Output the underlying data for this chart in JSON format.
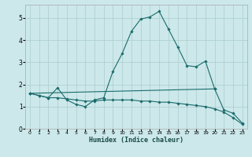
{
  "title": "",
  "xlabel": "Humidex (Indice chaleur)",
  "bg_color": "#cce8ea",
  "grid_color": "#aacccc",
  "line_color": "#1a6b6b",
  "xlim": [
    -0.5,
    23.5
  ],
  "ylim": [
    0,
    5.6
  ],
  "xticks": [
    0,
    1,
    2,
    3,
    4,
    5,
    6,
    7,
    8,
    9,
    10,
    11,
    12,
    13,
    14,
    15,
    16,
    17,
    18,
    19,
    20,
    21,
    22,
    23
  ],
  "yticks": [
    0,
    1,
    2,
    3,
    4,
    5
  ],
  "series": [
    {
      "x": [
        0,
        1,
        2,
        3,
        4,
        5,
        6,
        7,
        8,
        9,
        10,
        11,
        12,
        13,
        14,
        15,
        16,
        17,
        18,
        19,
        20
      ],
      "y": [
        1.6,
        1.5,
        1.4,
        1.85,
        1.3,
        1.1,
        1.0,
        1.3,
        1.4,
        2.6,
        3.4,
        4.4,
        4.95,
        5.05,
        5.3,
        4.5,
        3.7,
        2.85,
        2.8,
        3.05,
        1.8
      ]
    },
    {
      "x": [
        0,
        20,
        21,
        22,
        23
      ],
      "y": [
        1.6,
        1.8,
        0.85,
        0.7,
        0.25
      ]
    },
    {
      "x": [
        0,
        1,
        2,
        3,
        4,
        5,
        6,
        7,
        8,
        9,
        10,
        11,
        12,
        13,
        14,
        15,
        16,
        17,
        18,
        19,
        20,
        21,
        22,
        23
      ],
      "y": [
        1.6,
        1.5,
        1.4,
        1.4,
        1.35,
        1.3,
        1.25,
        1.25,
        1.3,
        1.3,
        1.3,
        1.3,
        1.25,
        1.25,
        1.2,
        1.2,
        1.15,
        1.1,
        1.05,
        1.0,
        0.9,
        0.75,
        0.5,
        0.2
      ]
    }
  ]
}
